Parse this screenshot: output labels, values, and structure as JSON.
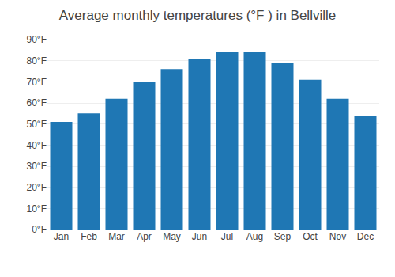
{
  "chart_data": {
    "type": "bar",
    "title": "Average monthly temperatures (°F ) in Bellville",
    "categories": [
      "Jan",
      "Feb",
      "Mar",
      "Apr",
      "May",
      "Jun",
      "Jul",
      "Aug",
      "Sep",
      "Oct",
      "Nov",
      "Dec"
    ],
    "values": [
      51,
      55,
      62,
      70,
      76,
      81,
      84,
      84,
      79,
      71,
      62,
      54
    ],
    "ylim": [
      0,
      90
    ],
    "yticks": [
      {
        "value": 0,
        "label": "0°F"
      },
      {
        "value": 10,
        "label": "10°F"
      },
      {
        "value": 20,
        "label": "20°F"
      },
      {
        "value": 30,
        "label": "30°F"
      },
      {
        "value": 40,
        "label": "40°F"
      },
      {
        "value": 50,
        "label": "50°F"
      },
      {
        "value": 60,
        "label": "60°F"
      },
      {
        "value": 70,
        "label": "70°F"
      },
      {
        "value": 80,
        "label": "80°F"
      },
      {
        "value": 90,
        "label": "90°F"
      }
    ],
    "grid": true
  }
}
